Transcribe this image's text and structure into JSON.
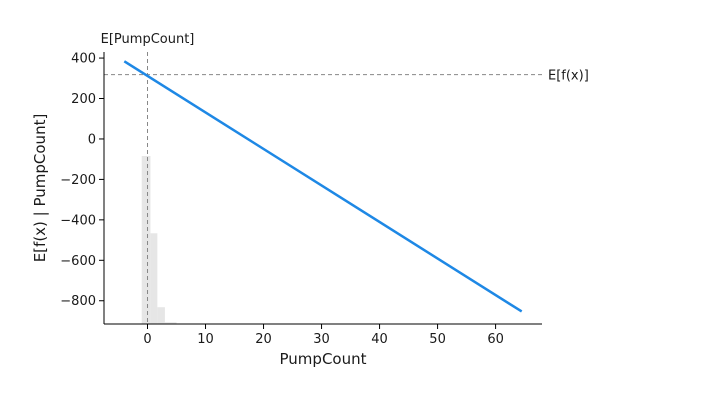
{
  "chart_data": {
    "type": "line",
    "xlabel": "PumpCount",
    "ylabel": "E[f(x) | PumpCount]",
    "xlim": [
      -7.5,
      68
    ],
    "ylim": [
      -915,
      430
    ],
    "x_ticks": [
      0,
      10,
      20,
      30,
      40,
      50,
      60
    ],
    "y_ticks": [
      400,
      200,
      0,
      -200,
      -400,
      -600,
      -800
    ],
    "grid": false,
    "series": [
      {
        "color": "#1e88e5",
        "x": [
          -4,
          64.5
        ],
        "y": [
          384,
          -853
        ]
      }
    ],
    "histogram": {
      "color": "#e6e6e6",
      "bins": [
        {
          "x0": -1,
          "x1": 0.5,
          "density": 1.0
        },
        {
          "x0": 0.5,
          "x1": 1.7,
          "density": 0.54
        },
        {
          "x0": 1.7,
          "x1": 3.0,
          "density": 0.1
        },
        {
          "x0": 3.0,
          "x1": 5.0,
          "density": 0.01
        }
      ]
    },
    "reference_lines": {
      "expected_value_x": 0,
      "expected_value_y": 318,
      "vertical_label": "E[PumpCount]",
      "horizontal_label": "E[f(x)]",
      "color": "#888888"
    }
  }
}
